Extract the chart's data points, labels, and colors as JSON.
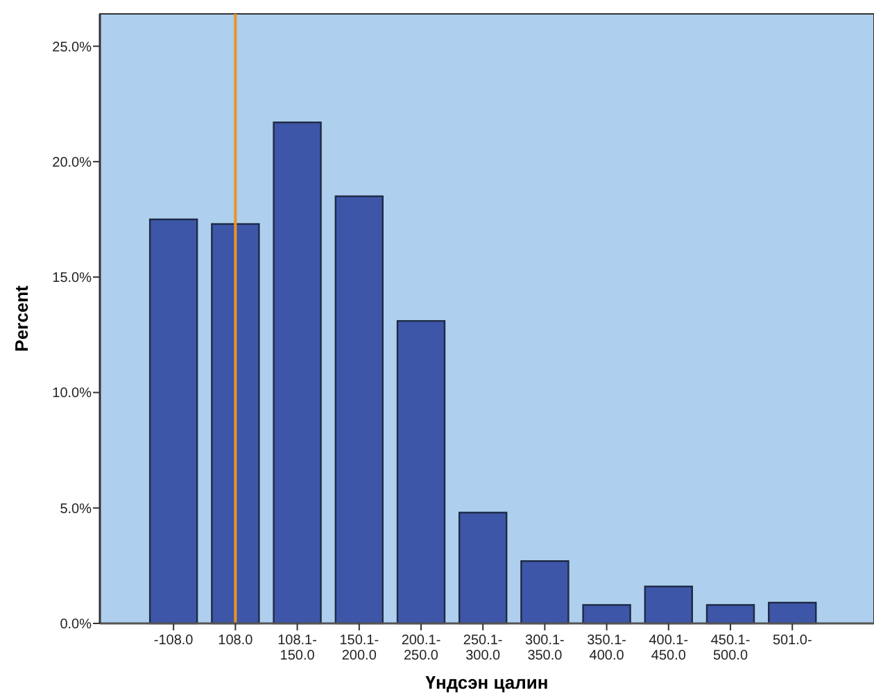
{
  "chart_data": {
    "type": "bar",
    "xlabel": "Үндсэн цалин",
    "ylabel": "Percent",
    "categories": [
      "-108.0",
      "108.0",
      "108.1-\n150.0",
      "150.1-\n200.0",
      "200.1-\n250.0",
      "250.1-\n300.0",
      "300.1-\n350.0",
      "350.1-\n400.0",
      "400.1-\n450.0",
      "450.1-\n500.0",
      "501.0-"
    ],
    "values": [
      17.5,
      17.3,
      21.7,
      18.5,
      13.1,
      4.8,
      2.7,
      0.8,
      1.6,
      0.8,
      0.9
    ],
    "color": "#3d56a8",
    "ylim": [
      0,
      26.4
    ],
    "yticks": [
      {
        "value": 0,
        "label": "0.0%"
      },
      {
        "value": 5,
        "label": "5.0%"
      },
      {
        "value": 10,
        "label": "10.0%"
      },
      {
        "value": 15,
        "label": "15.0%"
      },
      {
        "value": 20,
        "label": "20.0%"
      },
      {
        "value": 25,
        "label": "25.0%"
      }
    ],
    "ref_lines": [
      {
        "axis": "x",
        "value": "108.0",
        "color": "#f0921e"
      }
    ]
  }
}
